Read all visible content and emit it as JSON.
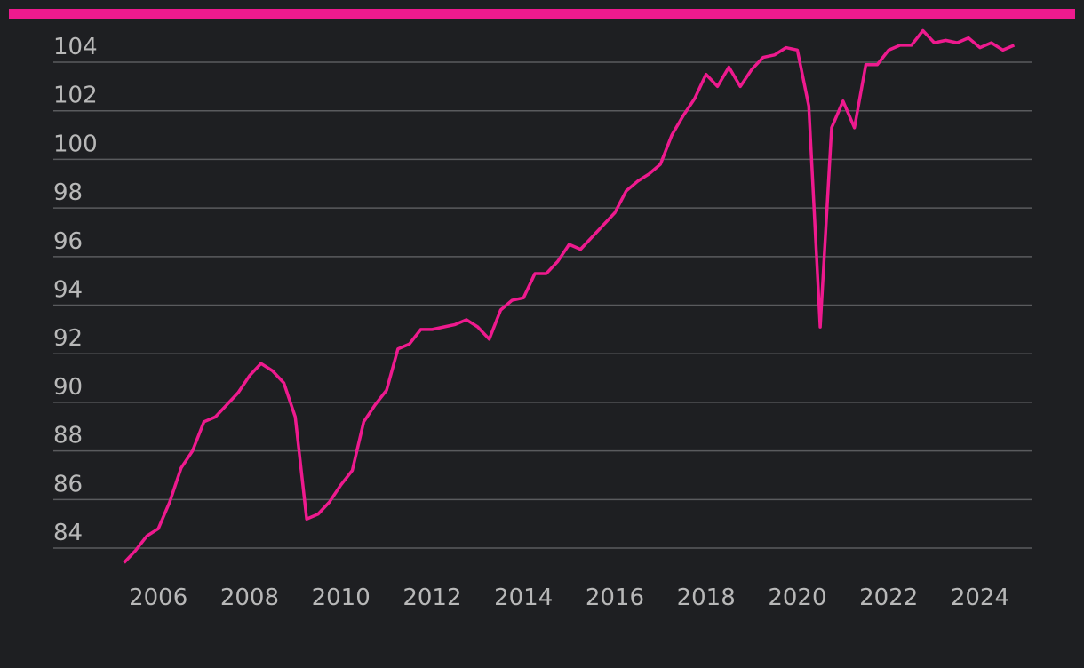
{
  "chart_data": {
    "type": "line",
    "color": "#ee1a8e",
    "grid": true,
    "xlim": [
      2003.7,
      2025.15
    ],
    "ylim": [
      83,
      106
    ],
    "xticks": [
      2006,
      2008,
      2010,
      2012,
      2014,
      2016,
      2018,
      2020,
      2022,
      2024
    ],
    "yticks": [
      84,
      86,
      88,
      90,
      92,
      94,
      96,
      98,
      100,
      102,
      104
    ],
    "x": [
      2005.25,
      2005.5,
      2005.75,
      2006,
      2006.25,
      2006.5,
      2006.75,
      2007,
      2007.25,
      2007.5,
      2007.75,
      2008,
      2008.25,
      2008.5,
      2008.75,
      2009,
      2009.25,
      2009.5,
      2009.75,
      2010,
      2010.25,
      2010.5,
      2010.75,
      2011,
      2011.25,
      2011.5,
      2011.75,
      2012,
      2012.25,
      2012.5,
      2012.75,
      2013,
      2013.25,
      2013.5,
      2013.75,
      2014,
      2014.25,
      2014.5,
      2014.75,
      2015,
      2015.25,
      2015.5,
      2015.75,
      2016,
      2016.25,
      2016.5,
      2016.75,
      2017,
      2017.25,
      2017.5,
      2017.75,
      2018,
      2018.25,
      2018.5,
      2018.75,
      2019,
      2019.25,
      2019.5,
      2019.75,
      2020,
      2020.25,
      2020.5,
      2020.75,
      2021,
      2021.25,
      2021.5,
      2021.75,
      2022,
      2022.25,
      2022.5,
      2022.75,
      2023,
      2023.25,
      2023.5,
      2023.75,
      2024,
      2024.25,
      2024.5,
      2024.75
    ],
    "values": [
      83.4,
      83.9,
      84.5,
      84.8,
      85.9,
      87.3,
      88.0,
      89.2,
      89.4,
      89.9,
      90.4,
      91.1,
      91.6,
      91.3,
      90.8,
      89.4,
      85.2,
      85.4,
      85.9,
      86.6,
      87.2,
      89.2,
      89.9,
      90.5,
      92.2,
      92.4,
      93.0,
      93.0,
      93.1,
      93.2,
      93.4,
      93.1,
      92.6,
      93.8,
      94.2,
      94.3,
      95.3,
      95.3,
      95.8,
      96.5,
      96.3,
      96.8,
      97.3,
      97.8,
      98.7,
      99.1,
      99.4,
      99.8,
      101.0,
      101.8,
      102.5,
      103.5,
      103.0,
      103.8,
      103.0,
      103.7,
      104.2,
      104.3,
      104.6,
      104.5,
      102.2,
      93.1,
      101.3,
      102.4,
      101.3,
      103.9,
      103.9,
      104.5,
      104.7,
      104.7,
      105.3,
      104.8,
      104.9,
      104.8,
      105.0,
      104.6,
      104.8,
      104.5,
      104.7
    ]
  }
}
